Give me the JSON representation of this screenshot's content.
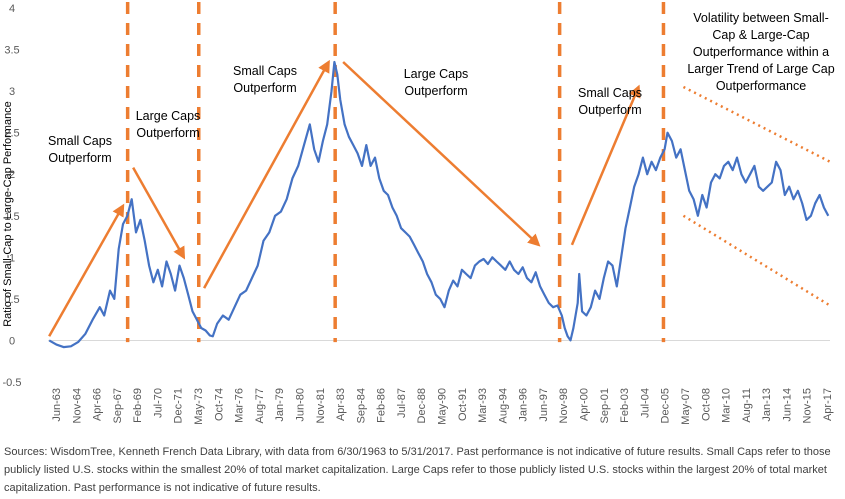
{
  "chart_data": {
    "type": "line",
    "ylabel": "Ratio of Small-Cap to Large-Cap Performance",
    "ylim": [
      -0.5,
      4
    ],
    "yticks": [
      -0.5,
      0,
      0.5,
      1,
      1.5,
      2,
      2.5,
      3,
      3.5,
      4
    ],
    "xlim": [
      1963.42,
      2017.42
    ],
    "xtick_labels": [
      "Jun-63",
      "Nov-64",
      "Apr-66",
      "Sep-67",
      "Feb-69",
      "Jul-70",
      "Dec-71",
      "May-73",
      "Oct-74",
      "Mar-76",
      "Aug-77",
      "Jan-79",
      "Jun-80",
      "Nov-81",
      "Apr-83",
      "Sep-84",
      "Feb-86",
      "Jul-87",
      "Dec-88",
      "May-90",
      "Oct-91",
      "Mar-93",
      "Aug-94",
      "Jan-96",
      "Jun-97",
      "Nov-98",
      "Apr-00",
      "Sep-01",
      "Feb-03",
      "Jul-04",
      "Dec-05",
      "May-07",
      "Oct-08",
      "Mar-10",
      "Aug-11",
      "Jan-13",
      "Jun-14",
      "Nov-15",
      "Apr-17"
    ],
    "series": [
      {
        "name": "Ratio of Small-Cap to Large-Cap Performance",
        "color": "#4472C4",
        "x": [
          1963.5,
          1964.0,
          1964.5,
          1965.0,
          1965.5,
          1966.0,
          1966.5,
          1967.0,
          1967.3,
          1967.7,
          1968.0,
          1968.3,
          1968.6,
          1968.9,
          1969.2,
          1969.5,
          1969.8,
          1970.1,
          1970.4,
          1970.7,
          1971.0,
          1971.3,
          1971.6,
          1971.9,
          1972.2,
          1972.5,
          1972.8,
          1973.1,
          1973.4,
          1973.7,
          1974.0,
          1974.3,
          1974.6,
          1974.8,
          1975.1,
          1975.5,
          1975.9,
          1976.3,
          1976.7,
          1977.1,
          1977.5,
          1977.9,
          1978.3,
          1978.7,
          1979.1,
          1979.5,
          1979.9,
          1980.3,
          1980.7,
          1981.1,
          1981.5,
          1981.8,
          1982.1,
          1982.4,
          1982.7,
          1983.0,
          1983.2,
          1983.4,
          1983.6,
          1983.9,
          1984.2,
          1984.5,
          1984.8,
          1985.1,
          1985.4,
          1985.7,
          1986.0,
          1986.3,
          1986.6,
          1986.9,
          1987.2,
          1987.5,
          1987.8,
          1988.1,
          1988.4,
          1988.7,
          1989.0,
          1989.3,
          1989.6,
          1989.9,
          1990.2,
          1990.5,
          1990.8,
          1991.1,
          1991.4,
          1991.7,
          1992.0,
          1992.3,
          1992.6,
          1992.9,
          1993.2,
          1993.5,
          1993.8,
          1994.1,
          1994.4,
          1994.7,
          1995.0,
          1995.3,
          1995.6,
          1995.9,
          1996.2,
          1996.5,
          1996.8,
          1997.1,
          1997.4,
          1997.7,
          1998.0,
          1998.3,
          1998.6,
          1998.9,
          1999.1,
          1999.3,
          1999.5,
          1999.7,
          2000.0,
          2000.1,
          2000.3,
          2000.6,
          2000.9,
          2001.2,
          2001.5,
          2001.8,
          2002.1,
          2002.4,
          2002.7,
          2003.0,
          2003.3,
          2003.6,
          2003.9,
          2004.2,
          2004.5,
          2004.8,
          2005.1,
          2005.4,
          2005.7,
          2006.0,
          2006.2,
          2006.5,
          2006.8,
          2007.1,
          2007.4,
          2007.7,
          2008.0,
          2008.3,
          2008.6,
          2008.9,
          2009.2,
          2009.5,
          2009.8,
          2010.1,
          2010.4,
          2010.7,
          2011.0,
          2011.3,
          2011.6,
          2011.9,
          2012.2,
          2012.5,
          2012.8,
          2013.1,
          2013.4,
          2013.7,
          2014.0,
          2014.3,
          2014.6,
          2014.9,
          2015.2,
          2015.5,
          2015.8,
          2016.1,
          2016.4,
          2016.7,
          2017.0,
          2017.3
        ],
        "values": [
          0.0,
          -0.05,
          -0.08,
          -0.07,
          -0.02,
          0.08,
          0.25,
          0.4,
          0.3,
          0.6,
          0.5,
          1.1,
          1.4,
          1.5,
          1.7,
          1.3,
          1.45,
          1.2,
          0.9,
          0.7,
          0.85,
          0.65,
          0.95,
          0.8,
          0.6,
          0.9,
          0.75,
          0.55,
          0.35,
          0.25,
          0.15,
          0.12,
          0.06,
          0.05,
          0.2,
          0.3,
          0.25,
          0.4,
          0.55,
          0.6,
          0.75,
          0.9,
          1.2,
          1.3,
          1.5,
          1.55,
          1.7,
          1.95,
          2.1,
          2.35,
          2.6,
          2.3,
          2.15,
          2.4,
          2.6,
          3.0,
          3.35,
          3.2,
          2.9,
          2.6,
          2.45,
          2.35,
          2.25,
          2.1,
          2.35,
          2.1,
          2.2,
          1.95,
          1.8,
          1.75,
          1.6,
          1.5,
          1.35,
          1.3,
          1.25,
          1.15,
          1.05,
          0.95,
          0.8,
          0.7,
          0.55,
          0.5,
          0.4,
          0.6,
          0.72,
          0.65,
          0.85,
          0.8,
          0.75,
          0.9,
          0.95,
          0.98,
          0.92,
          1.0,
          0.95,
          0.9,
          0.85,
          0.95,
          0.85,
          0.8,
          0.88,
          0.75,
          0.7,
          0.82,
          0.65,
          0.55,
          0.45,
          0.4,
          0.42,
          0.3,
          0.15,
          0.05,
          0.0,
          0.15,
          0.45,
          0.8,
          0.35,
          0.3,
          0.4,
          0.6,
          0.5,
          0.75,
          0.95,
          0.9,
          0.65,
          1.0,
          1.35,
          1.6,
          1.85,
          2.0,
          2.2,
          2.0,
          2.15,
          2.05,
          2.2,
          2.3,
          2.5,
          2.4,
          2.2,
          2.3,
          2.05,
          1.8,
          1.7,
          1.5,
          1.75,
          1.6,
          1.9,
          2.0,
          1.95,
          2.1,
          2.15,
          2.05,
          2.2,
          2.0,
          1.9,
          2.0,
          2.1,
          1.85,
          1.8,
          1.85,
          1.9,
          2.15,
          2.05,
          1.75,
          1.85,
          1.7,
          1.8,
          1.65,
          1.45,
          1.5,
          1.65,
          1.75,
          1.6,
          1.5
        ]
      }
    ],
    "annotations": [
      {
        "lines": [
          "Small Caps",
          "Outperform"
        ]
      },
      {
        "lines": [
          "Large Caps",
          "Outperform"
        ]
      },
      {
        "lines": [
          "Small Caps",
          "Outperform"
        ]
      },
      {
        "lines": [
          "Large Caps",
          "Outperform"
        ]
      },
      {
        "lines": [
          "Small Caps",
          "Outperform"
        ]
      },
      {
        "lines": [
          "Volatility between Small-",
          "Cap & Large-Cap",
          "Outperformance within a",
          "Larger Trend of Large Cap",
          "Outperformance"
        ]
      }
    ],
    "regime_dividers_years": [
      1968.92,
      1973.83,
      1983.25,
      1998.75,
      2005.92
    ],
    "trend_arrows": [
      {
        "from": [
          1963.5,
          0.05
        ],
        "to": [
          1968.6,
          1.62
        ]
      },
      {
        "from": [
          1969.3,
          2.08
        ],
        "to": [
          1972.8,
          1.0
        ]
      },
      {
        "from": [
          1974.2,
          0.63
        ],
        "to": [
          1982.8,
          3.35
        ]
      },
      {
        "from": [
          1983.8,
          3.35
        ],
        "to": [
          1997.3,
          1.15
        ]
      },
      {
        "from": [
          1999.6,
          1.15
        ],
        "to": [
          2004.2,
          3.05
        ]
      }
    ],
    "trend_channel": [
      {
        "from": [
          2007.3,
          3.05
        ],
        "to": [
          2017.42,
          2.15
        ]
      },
      {
        "from": [
          2007.3,
          1.5
        ],
        "to": [
          2017.42,
          0.42
        ]
      }
    ],
    "colors": {
      "line": "#4472C4",
      "orange": "#ED7D31",
      "axis_text": "#595959"
    }
  },
  "source_note": "Sources: WisdomTree, Kenneth French Data Library, with data from 6/30/1963 to 5/31/2017. Past performance is not indicative of future results. Small Caps refer to those publicly listed U.S. stocks within the smallest 20% of total market capitalization. Large Caps refer to those publicly listed U.S. stocks within the largest 20% of total market capitalization. Past performance is not indicative of future results."
}
